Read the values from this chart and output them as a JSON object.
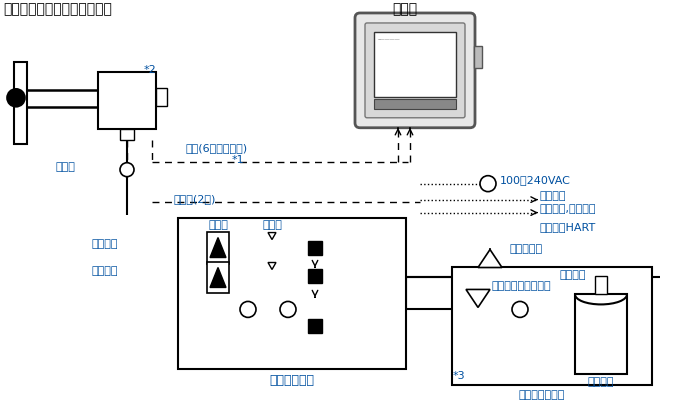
{
  "bg": "#ffffff",
  "black": "#000000",
  "blue": "#0050A0",
  "gray": "#888888",
  "lgray": "#cccccc",
  "dgray": "#444444",
  "title_detector": "分离式氧化锆氧分析仪检测器",
  "title_converter": "变换器",
  "label_star1": "*1",
  "label_star2": "*2",
  "label_star3": "*3",
  "label_signal": "信号(6芯屏蔽电缆)",
  "label_heater": "加热器(2芯)",
  "label_checkvalve": "止回阀",
  "label_flowmeter": "流量计",
  "label_needlevalve": "针形阀",
  "label_ref_gas": "参比气体",
  "label_cal_gas": "校正气体",
  "label_auto_cal": "自动校正单元",
  "label_gas_adj": "气体调节阀",
  "label_instr_gas": "仪表气体",
  "label_cal_pressure": "校正气体压力调节器",
  "label_cal_box": "校正气体单元箱",
  "label_zero_bottle": "零点气瓶",
  "label_power": "100～240VAC",
  "label_contact_in": "触点输入",
  "label_analog_out": "模拟输出,触点输出",
  "label_digital_out": "数字输出HART"
}
